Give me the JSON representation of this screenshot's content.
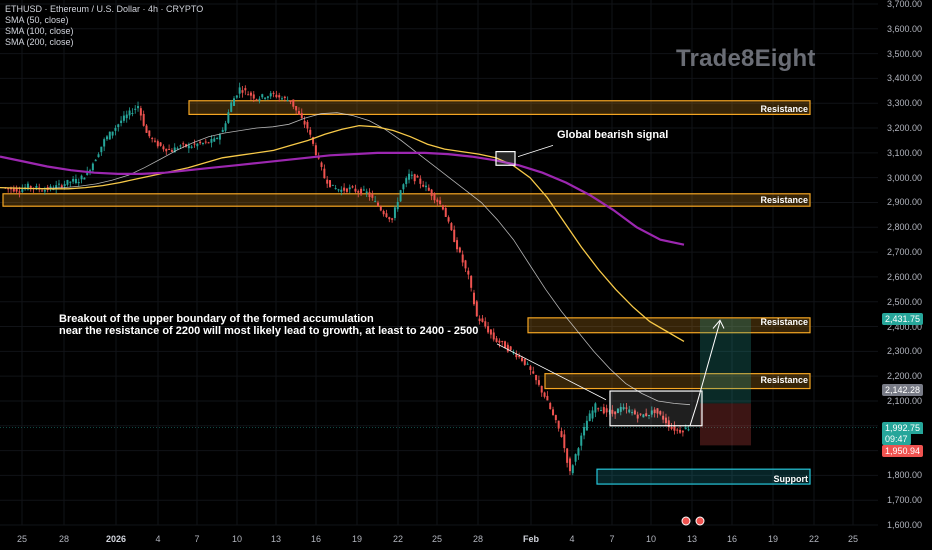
{
  "header": {
    "title": "ETHUSD · Ethereum / U.S. Dollar · 4h · CRYPTO",
    "ind1": "SMA (50, close)",
    "ind2": "SMA (100, close)",
    "ind3": "SMA (200, close)"
  },
  "watermark": "Trade8Eight",
  "zones": {
    "resistance1": "Resistance",
    "resistance2": "Resistance",
    "resistance3": "Resistance",
    "resistance4": "Resistance",
    "support": "Support"
  },
  "annotations": {
    "bearish": "Global bearish signal",
    "breakout_line1": "Breakout of the upper boundary of the formed accumulation",
    "breakout_line2": "near the resistance of 2200 will most likely lead to growth, at least to 2400 - 2500"
  },
  "price_badges": {
    "target": "2,431.75",
    "sma": "2,142.28",
    "last": "1,992.75",
    "timer": "09:47",
    "stop": "1,950.94"
  },
  "colors": {
    "zone_orange": "#f5a623",
    "support_teal": "#26c6da",
    "sma50": "#e0e0e0",
    "sma100": "#f7c948",
    "sma200": "#9c27b0",
    "up": "#26a69a",
    "down": "#ef5350"
  },
  "chart_data": {
    "type": "candlestick",
    "symbol": "ETHUSD",
    "timeframe": "4h",
    "y_ticks": [
      "3,700.00",
      "3,600.00",
      "3,500.00",
      "3,400.00",
      "3,300.00",
      "3,200.00",
      "3,100.00",
      "3,000.00",
      "2,900.00",
      "2,800.00",
      "2,700.00",
      "2,600.00",
      "2,500.00",
      "2,400.00",
      "2,300.00",
      "2,200.00",
      "2,100.00",
      "2,000.00",
      "1,900.00",
      "1,800.00",
      "1,700.00",
      "1,600.00"
    ],
    "ylim": [
      1600,
      3700
    ],
    "x_ticks": [
      "25",
      "28",
      "2026",
      "4",
      "7",
      "10",
      "13",
      "16",
      "19",
      "22",
      "25",
      "28",
      "Feb",
      "4",
      "7",
      "10",
      "13",
      "16",
      "19",
      "22",
      "25"
    ],
    "zones": [
      {
        "label": "Resistance",
        "from": 3255,
        "to": 3310
      },
      {
        "label": "Resistance",
        "from": 2885,
        "to": 2935
      },
      {
        "label": "Resistance",
        "from": 2375,
        "to": 2435
      },
      {
        "label": "Resistance",
        "from": 2150,
        "to": 2210
      },
      {
        "label": "Support",
        "from": 1765,
        "to": 1825
      }
    ],
    "price_path": [
      2960,
      2955,
      2950,
      2965,
      2958,
      2952,
      2960,
      2972,
      2985,
      2990,
      3020,
      3080,
      3150,
      3190,
      3230,
      3260,
      3290,
      3180,
      3140,
      3120,
      3110,
      3130,
      3125,
      3135,
      3140,
      3150,
      3190,
      3300,
      3360,
      3340,
      3320,
      3330,
      3335,
      3320,
      3310,
      3250,
      3200,
      3100,
      3000,
      2960,
      2950,
      2955,
      2945,
      2940,
      2900,
      2860,
      2830,
      2950,
      3010,
      2990,
      2960,
      2920,
      2880,
      2780,
      2690,
      2600,
      2440,
      2400,
      2350,
      2330,
      2300,
      2280,
      2240,
      2180,
      2120,
      2040,
      1960,
      1810,
      1920,
      2020,
      2080,
      2060,
      2050,
      2070,
      2060,
      2040,
      2045,
      2060,
      2030,
      1990,
      1980,
      1992.75
    ],
    "sma50_path": [
      2960,
      2958,
      2956,
      2957,
      2960,
      2966,
      2975,
      2990,
      3010,
      3040,
      3075,
      3110,
      3140,
      3165,
      3180,
      3190,
      3200,
      3205,
      3215,
      3240,
      3258,
      3262,
      3250,
      3230,
      3195,
      3150,
      3100,
      3050,
      3000,
      2950,
      2900,
      2830,
      2750,
      2650,
      2550,
      2460,
      2380,
      2300,
      2230,
      2170,
      2130,
      2100,
      2090,
      2085
    ],
    "sma100_path": [
      2960,
      2958,
      2956,
      2955,
      2955,
      2960,
      2968,
      2980,
      2995,
      3010,
      3025,
      3040,
      3060,
      3080,
      3090,
      3100,
      3110,
      3130,
      3150,
      3175,
      3195,
      3210,
      3205,
      3190,
      3165,
      3135,
      3115,
      3105,
      3095,
      3080,
      3050,
      3000,
      2920,
      2820,
      2720,
      2630,
      2550,
      2480,
      2420,
      2380,
      2340
    ],
    "sma200_path": [
      3085,
      3065,
      3045,
      3030,
      3020,
      3015,
      3015,
      3020,
      3030,
      3040,
      3050,
      3060,
      3070,
      3080,
      3090,
      3095,
      3100,
      3100,
      3100,
      3095,
      3085,
      3070,
      3050,
      3020,
      2980,
      2930,
      2870,
      2800,
      2750,
      2730
    ],
    "projection": [
      {
        "t": "start",
        "price": 2090
      },
      {
        "t": "end",
        "price": 2420
      }
    ],
    "position": {
      "entry": 2090,
      "target": 2431.75,
      "stop": 1950.94
    }
  }
}
